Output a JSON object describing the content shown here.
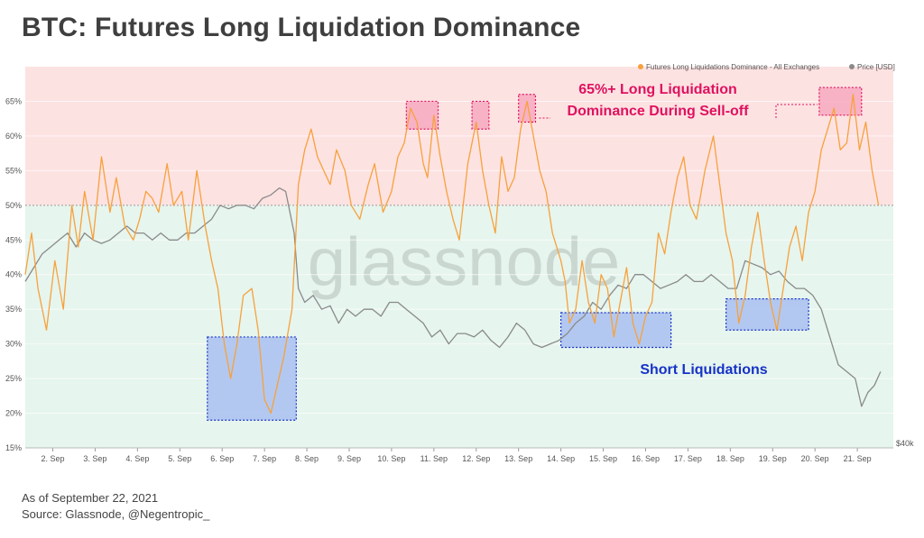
{
  "title": "BTC: Futures Long Liquidation Dominance",
  "footer": {
    "date_line": "As of September 22, 2021",
    "source_line": "Source: Glassnode, @Negentropic_"
  },
  "watermark": "glassnode",
  "colors": {
    "dominance": "#f7a13b",
    "price": "#8a8a8a",
    "upper_zone": "#fde2e2",
    "lower_zone": "#e6f5ee",
    "long_box": "#f7a9c0",
    "short_box": "#a9bff0",
    "long_text": "#e0115f",
    "short_text": "#1632c8"
  },
  "chart_data": {
    "type": "line",
    "title": "BTC: Futures Long Liquidation Dominance",
    "xlabel": "",
    "ylabel": "",
    "x_range": [
      1.35,
      21.85
    ],
    "ylim": [
      15,
      70
    ],
    "y_ticks": [
      "15%",
      "20%",
      "25%",
      "30%",
      "35%",
      "40%",
      "45%",
      "50%",
      "55%",
      "60%",
      "65%"
    ],
    "y_tick_values": [
      15,
      20,
      25,
      30,
      35,
      40,
      45,
      50,
      55,
      60,
      65
    ],
    "x_ticks": [
      "2. Sep",
      "3. Sep",
      "4. Sep",
      "5. Sep",
      "6. Sep",
      "7. Sep",
      "8. Sep",
      "9. Sep",
      "10. Sep",
      "11. Sep",
      "12. Sep",
      "13. Sep",
      "14. Sep",
      "15. Sep",
      "16. Sep",
      "17. Sep",
      "18. Sep",
      "19. Sep",
      "20. Sep",
      "21. Sep"
    ],
    "x_tick_values": [
      2,
      3,
      4,
      5,
      6,
      7,
      8,
      9,
      10,
      11,
      12,
      13,
      14,
      15,
      16,
      17,
      18,
      19,
      20,
      21
    ],
    "right_axis_label": "$40k",
    "threshold": 50,
    "grid": true,
    "legend_position": "top-right",
    "legend": [
      {
        "label": "Futures Long Liquidations Dominance - All Exchanges",
        "color": "#f7a13b"
      },
      {
        "label": "Price [USD]",
        "color": "#8a8a8a"
      }
    ],
    "series": [
      {
        "name": "Futures Long Liquidations Dominance - All Exchanges",
        "color": "#f7a13b",
        "points": [
          [
            1.35,
            40
          ],
          [
            1.5,
            46
          ],
          [
            1.65,
            38
          ],
          [
            1.85,
            32
          ],
          [
            2.05,
            42
          ],
          [
            2.25,
            35
          ],
          [
            2.45,
            50
          ],
          [
            2.6,
            44
          ],
          [
            2.75,
            52
          ],
          [
            2.95,
            45
          ],
          [
            3.15,
            57
          ],
          [
            3.35,
            49
          ],
          [
            3.5,
            54
          ],
          [
            3.7,
            47
          ],
          [
            3.9,
            45
          ],
          [
            4.05,
            48
          ],
          [
            4.2,
            52
          ],
          [
            4.35,
            51
          ],
          [
            4.5,
            49
          ],
          [
            4.7,
            56
          ],
          [
            4.85,
            50
          ],
          [
            5.05,
            52
          ],
          [
            5.2,
            45
          ],
          [
            5.4,
            55
          ],
          [
            5.6,
            47
          ],
          [
            5.75,
            42
          ],
          [
            5.9,
            38
          ],
          [
            6.05,
            30
          ],
          [
            6.2,
            25
          ],
          [
            6.35,
            30
          ],
          [
            6.5,
            37
          ],
          [
            6.7,
            38
          ],
          [
            6.85,
            32
          ],
          [
            7.0,
            22
          ],
          [
            7.15,
            20
          ],
          [
            7.3,
            24
          ],
          [
            7.45,
            28
          ],
          [
            7.65,
            35
          ],
          [
            7.8,
            53
          ],
          [
            7.95,
            58
          ],
          [
            8.1,
            61
          ],
          [
            8.25,
            57
          ],
          [
            8.4,
            55
          ],
          [
            8.55,
            53
          ],
          [
            8.7,
            58
          ],
          [
            8.9,
            55
          ],
          [
            9.05,
            50
          ],
          [
            9.25,
            48
          ],
          [
            9.45,
            53
          ],
          [
            9.6,
            56
          ],
          [
            9.8,
            49
          ],
          [
            10.0,
            52
          ],
          [
            10.15,
            57
          ],
          [
            10.3,
            59
          ],
          [
            10.45,
            64
          ],
          [
            10.6,
            62
          ],
          [
            10.75,
            56
          ],
          [
            10.85,
            54
          ],
          [
            11.0,
            63
          ],
          [
            11.15,
            57
          ],
          [
            11.3,
            52
          ],
          [
            11.45,
            48
          ],
          [
            11.6,
            45
          ],
          [
            11.8,
            56
          ],
          [
            12.0,
            62
          ],
          [
            12.15,
            55
          ],
          [
            12.3,
            50
          ],
          [
            12.45,
            46
          ],
          [
            12.6,
            57
          ],
          [
            12.75,
            52
          ],
          [
            12.9,
            54
          ],
          [
            13.05,
            61
          ],
          [
            13.2,
            65
          ],
          [
            13.35,
            60
          ],
          [
            13.5,
            55
          ],
          [
            13.65,
            52
          ],
          [
            13.8,
            46
          ],
          [
            14.0,
            42
          ],
          [
            14.1,
            39
          ],
          [
            14.2,
            33
          ],
          [
            14.35,
            35
          ],
          [
            14.5,
            42
          ],
          [
            14.65,
            36
          ],
          [
            14.8,
            33
          ],
          [
            14.95,
            40
          ],
          [
            15.1,
            38
          ],
          [
            15.25,
            31
          ],
          [
            15.4,
            36
          ],
          [
            15.55,
            41
          ],
          [
            15.7,
            33
          ],
          [
            15.85,
            30
          ],
          [
            16.0,
            34
          ],
          [
            16.15,
            36
          ],
          [
            16.3,
            46
          ],
          [
            16.45,
            43
          ],
          [
            16.6,
            49
          ],
          [
            16.75,
            54
          ],
          [
            16.9,
            57
          ],
          [
            17.05,
            50
          ],
          [
            17.2,
            48
          ],
          [
            17.4,
            55
          ],
          [
            17.6,
            60
          ],
          [
            17.75,
            53
          ],
          [
            17.9,
            46
          ],
          [
            18.05,
            42
          ],
          [
            18.2,
            33
          ],
          [
            18.35,
            37
          ],
          [
            18.5,
            44
          ],
          [
            18.65,
            49
          ],
          [
            18.8,
            42
          ],
          [
            18.95,
            36
          ],
          [
            19.1,
            32
          ],
          [
            19.25,
            38
          ],
          [
            19.4,
            44
          ],
          [
            19.55,
            47
          ],
          [
            19.7,
            42
          ],
          [
            19.85,
            49
          ],
          [
            20.0,
            52
          ],
          [
            20.15,
            58
          ],
          [
            20.3,
            61
          ],
          [
            20.45,
            64
          ],
          [
            20.6,
            58
          ],
          [
            20.75,
            59
          ],
          [
            20.9,
            66
          ],
          [
            21.05,
            58
          ],
          [
            21.2,
            62
          ],
          [
            21.35,
            55
          ],
          [
            21.5,
            50
          ]
        ]
      },
      {
        "name": "Price [USD]",
        "color": "#8a8a8a",
        "points": [
          [
            1.35,
            39
          ],
          [
            1.55,
            41
          ],
          [
            1.75,
            43
          ],
          [
            1.95,
            44
          ],
          [
            2.15,
            45
          ],
          [
            2.35,
            46
          ],
          [
            2.55,
            44
          ],
          [
            2.75,
            46
          ],
          [
            2.95,
            45
          ],
          [
            3.15,
            44.5
          ],
          [
            3.35,
            45
          ],
          [
            3.55,
            46
          ],
          [
            3.75,
            47
          ],
          [
            3.95,
            46
          ],
          [
            4.15,
            46
          ],
          [
            4.35,
            45
          ],
          [
            4.55,
            46
          ],
          [
            4.75,
            45
          ],
          [
            4.95,
            45
          ],
          [
            5.15,
            46
          ],
          [
            5.35,
            46
          ],
          [
            5.55,
            47
          ],
          [
            5.75,
            48
          ],
          [
            5.95,
            50
          ],
          [
            6.15,
            49.5
          ],
          [
            6.35,
            50
          ],
          [
            6.55,
            50
          ],
          [
            6.75,
            49.5
          ],
          [
            6.95,
            51
          ],
          [
            7.15,
            51.5
          ],
          [
            7.35,
            52.5
          ],
          [
            7.5,
            52
          ],
          [
            7.6,
            49
          ],
          [
            7.7,
            46
          ],
          [
            7.8,
            38
          ],
          [
            7.95,
            36
          ],
          [
            8.15,
            37
          ],
          [
            8.35,
            35
          ],
          [
            8.55,
            35.5
          ],
          [
            8.75,
            33
          ],
          [
            8.95,
            35
          ],
          [
            9.15,
            34
          ],
          [
            9.35,
            35
          ],
          [
            9.55,
            35
          ],
          [
            9.75,
            34
          ],
          [
            9.95,
            36
          ],
          [
            10.15,
            36
          ],
          [
            10.35,
            35
          ],
          [
            10.55,
            34
          ],
          [
            10.75,
            33
          ],
          [
            10.95,
            31
          ],
          [
            11.15,
            32
          ],
          [
            11.35,
            30
          ],
          [
            11.55,
            31.5
          ],
          [
            11.75,
            31.5
          ],
          [
            11.95,
            31
          ],
          [
            12.15,
            32
          ],
          [
            12.35,
            30.5
          ],
          [
            12.55,
            29.5
          ],
          [
            12.75,
            31
          ],
          [
            12.95,
            33
          ],
          [
            13.15,
            32
          ],
          [
            13.35,
            30
          ],
          [
            13.55,
            29.5
          ],
          [
            13.75,
            30
          ],
          [
            13.95,
            30.5
          ],
          [
            14.15,
            31.5
          ],
          [
            14.35,
            33
          ],
          [
            14.55,
            34
          ],
          [
            14.75,
            36
          ],
          [
            14.95,
            35
          ],
          [
            15.15,
            37
          ],
          [
            15.35,
            38.5
          ],
          [
            15.55,
            38
          ],
          [
            15.75,
            40
          ],
          [
            15.95,
            40
          ],
          [
            16.15,
            39
          ],
          [
            16.35,
            38
          ],
          [
            16.55,
            38.5
          ],
          [
            16.75,
            39
          ],
          [
            16.95,
            40
          ],
          [
            17.15,
            39
          ],
          [
            17.35,
            39
          ],
          [
            17.55,
            40
          ],
          [
            17.75,
            39
          ],
          [
            17.95,
            38
          ],
          [
            18.15,
            38
          ],
          [
            18.35,
            42
          ],
          [
            18.55,
            41.5
          ],
          [
            18.75,
            41
          ],
          [
            18.95,
            40
          ],
          [
            19.15,
            40.5
          ],
          [
            19.35,
            39
          ],
          [
            19.55,
            38
          ],
          [
            19.75,
            38
          ],
          [
            19.95,
            37
          ],
          [
            20.15,
            35
          ],
          [
            20.35,
            31
          ],
          [
            20.55,
            27
          ],
          [
            20.75,
            26
          ],
          [
            20.95,
            25
          ],
          [
            21.1,
            21
          ],
          [
            21.25,
            23
          ],
          [
            21.4,
            24
          ],
          [
            21.55,
            26
          ]
        ]
      }
    ],
    "annotations": [
      {
        "text_lines": [
          "65%+ Long Liquidation",
          "Dominance During Sell-off"
        ],
        "color": "#e0115f"
      },
      {
        "text_lines": [
          "Short Liquidations"
        ],
        "color": "#1632c8"
      }
    ],
    "highlight_boxes": {
      "long": [
        [
          10.35,
          11.1,
          61,
          65
        ],
        [
          11.9,
          12.3,
          61,
          65
        ],
        [
          13.0,
          13.4,
          62,
          66
        ],
        [
          20.1,
          21.1,
          63,
          67
        ]
      ],
      "short": [
        [
          5.65,
          7.75,
          19,
          31
        ],
        [
          14.0,
          16.6,
          29.5,
          34.5
        ],
        [
          17.9,
          19.85,
          32,
          36.5
        ]
      ]
    }
  }
}
